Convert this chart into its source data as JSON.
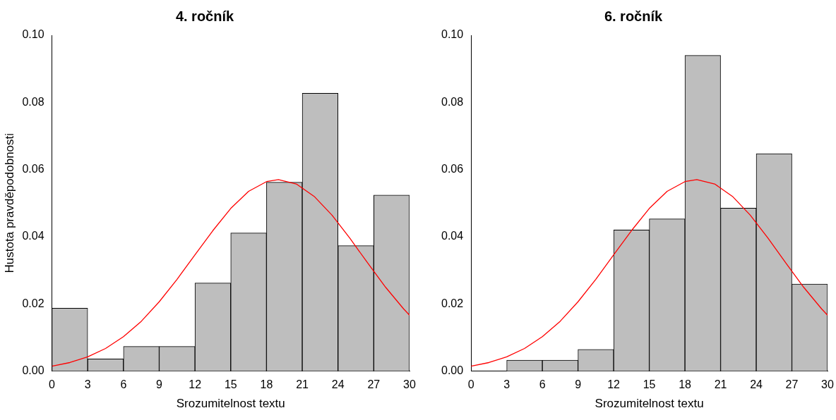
{
  "chart_data": [
    {
      "type": "histogram",
      "title": "4. ročník",
      "xlabel": "Srozumitelnost textu",
      "ylabel": "Hustota pravděpodobnosti",
      "bins": [
        0,
        3,
        6,
        9,
        12,
        15,
        18,
        21,
        24,
        27,
        30
      ],
      "values": [
        0.0187,
        0.0036,
        0.0073,
        0.0073,
        0.0262,
        0.0411,
        0.0562,
        0.0827,
        0.0373,
        0.0524
      ],
      "color": "#bebebe",
      "xlim": [
        0,
        30
      ],
      "xticks": [
        0,
        3,
        6,
        9,
        12,
        15,
        18,
        21,
        24,
        27,
        30
      ],
      "ylim": [
        0,
        0.1
      ],
      "yticks": [
        {
          "value": 0,
          "label": "0.00"
        },
        {
          "value": 0.02,
          "label": "0.02"
        },
        {
          "value": 0.04,
          "label": "0.04"
        },
        {
          "value": 0.06,
          "label": "0.06"
        },
        {
          "value": 0.08,
          "label": "0.08"
        },
        {
          "value": 0.1,
          "label": "0.10"
        }
      ],
      "grid": false,
      "legend": false,
      "series": [
        {
          "type": "line",
          "color": "#ff0000",
          "x": [
            0,
            1.5,
            3,
            4.5,
            6,
            7.5,
            9,
            10.5,
            12,
            13.5,
            15,
            16.5,
            18,
            19,
            20.5,
            22,
            23.5,
            25,
            26.5,
            28,
            29.5,
            30
          ],
          "values": [
            0.0014,
            0.0025,
            0.0042,
            0.0067,
            0.0102,
            0.0148,
            0.0206,
            0.0273,
            0.0346,
            0.0418,
            0.0484,
            0.0535,
            0.0564,
            0.057,
            0.0557,
            0.052,
            0.0464,
            0.0395,
            0.0321,
            0.0249,
            0.0185,
            0.0166
          ]
        }
      ]
    },
    {
      "type": "histogram",
      "title": "6. ročník",
      "xlabel": "Srozumitelnost textu",
      "bins": [
        0,
        3,
        6,
        9,
        12,
        15,
        18,
        21,
        24,
        27,
        30
      ],
      "values": [
        0,
        0.0032,
        0.0032,
        0.0064,
        0.042,
        0.0453,
        0.094,
        0.0485,
        0.0647,
        0.0259
      ],
      "color": "#bebebe",
      "xlim": [
        0,
        30
      ],
      "xticks": [
        0,
        3,
        6,
        9,
        12,
        15,
        18,
        21,
        24,
        27,
        30
      ],
      "ylim": [
        0,
        0.1
      ],
      "yticks": [
        {
          "value": 0,
          "label": "0.00"
        },
        {
          "value": 0.02,
          "label": "0.02"
        },
        {
          "value": 0.04,
          "label": "0.04"
        },
        {
          "value": 0.06,
          "label": "0.06"
        },
        {
          "value": 0.08,
          "label": "0.08"
        },
        {
          "value": 0.1,
          "label": "0.10"
        }
      ],
      "grid": false,
      "legend": false,
      "series": [
        {
          "type": "line",
          "color": "#ff0000",
          "x": [
            0,
            1.5,
            3,
            4.5,
            6,
            7.5,
            9,
            10.5,
            12,
            13.5,
            15,
            16.5,
            18,
            19,
            20.5,
            22,
            23.5,
            25,
            26.5,
            28,
            29.5,
            30
          ],
          "values": [
            0.0014,
            0.0025,
            0.0042,
            0.0067,
            0.0102,
            0.0148,
            0.0206,
            0.0273,
            0.0346,
            0.0418,
            0.0484,
            0.0535,
            0.0564,
            0.057,
            0.0557,
            0.052,
            0.0464,
            0.0395,
            0.0321,
            0.0249,
            0.0185,
            0.0166
          ]
        }
      ]
    }
  ]
}
